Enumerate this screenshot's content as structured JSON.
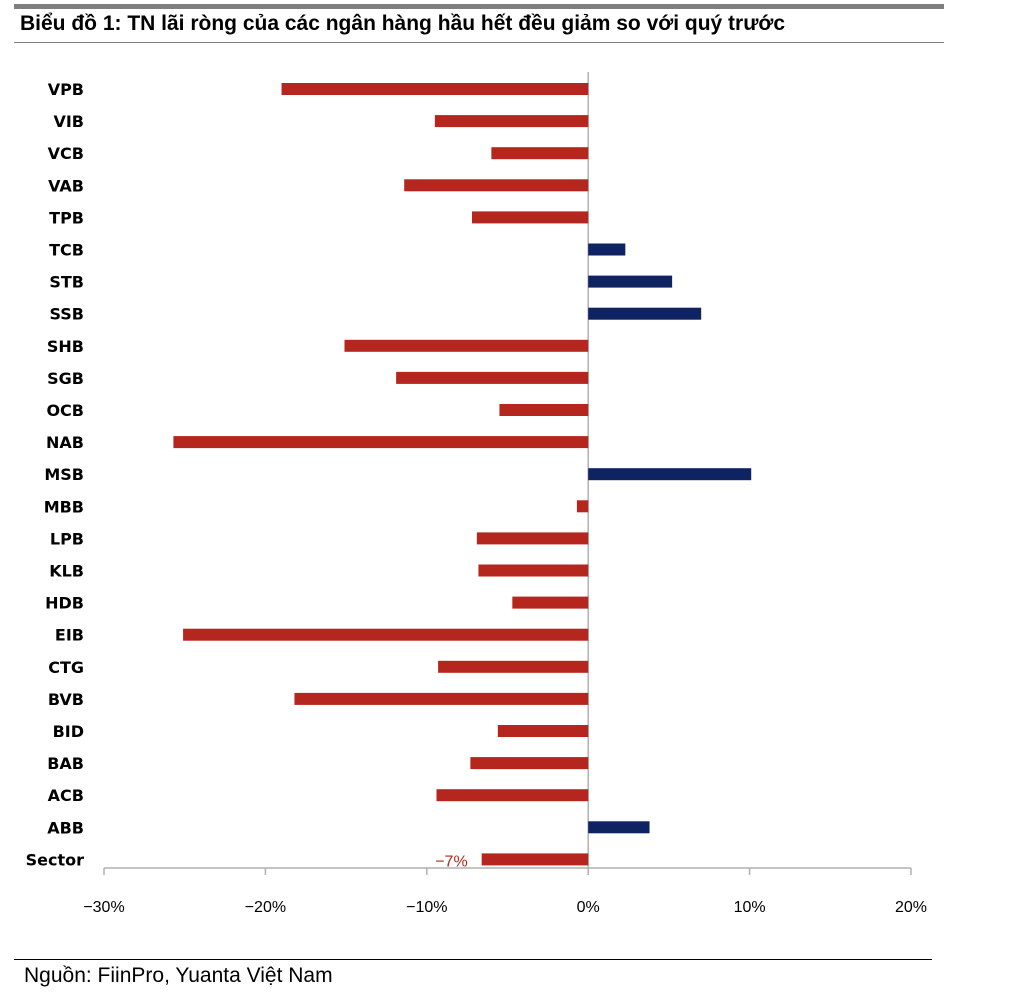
{
  "title": "Biểu đồ 1:  TN lãi ròng của các ngân hàng hầu hết đều giảm so với quý trước",
  "source": "Nguồn: FiinPro, Yuanta Việt Nam",
  "chart_data": {
    "type": "bar",
    "orientation": "horizontal",
    "categories": [
      "VPB",
      "VIB",
      "VCB",
      "VAB",
      "TPB",
      "TCB",
      "STB",
      "SSB",
      "SHB",
      "SGB",
      "OCB",
      "NAB",
      "MSB",
      "MBB",
      "LPB",
      "KLB",
      "HDB",
      "EIB",
      "CTG",
      "BVB",
      "BID",
      "BAB",
      "ACB",
      "ABB",
      "Sector"
    ],
    "values": [
      -19.0,
      -9.5,
      -6.0,
      -11.4,
      -7.2,
      2.3,
      5.2,
      7.0,
      -15.1,
      -11.9,
      -5.5,
      -25.7,
      10.1,
      -0.7,
      -6.9,
      -6.8,
      -4.7,
      -25.1,
      -9.3,
      -18.2,
      -5.6,
      -7.3,
      -9.4,
      3.8,
      -6.6
    ],
    "data_labels": [
      {
        "category": "Sector",
        "text": "−7%"
      }
    ],
    "xlim": [
      -30,
      20
    ],
    "xticks": [
      -30,
      -20,
      -10,
      0,
      10,
      20
    ],
    "xtick_labels": [
      "−30%",
      "−20%",
      "−10%",
      "0%",
      "10%",
      "20%"
    ],
    "colors": {
      "negative": "#b5261e",
      "positive": "#0f2261",
      "axis": "#b0b0b0",
      "label_red": "#b5261e"
    }
  }
}
